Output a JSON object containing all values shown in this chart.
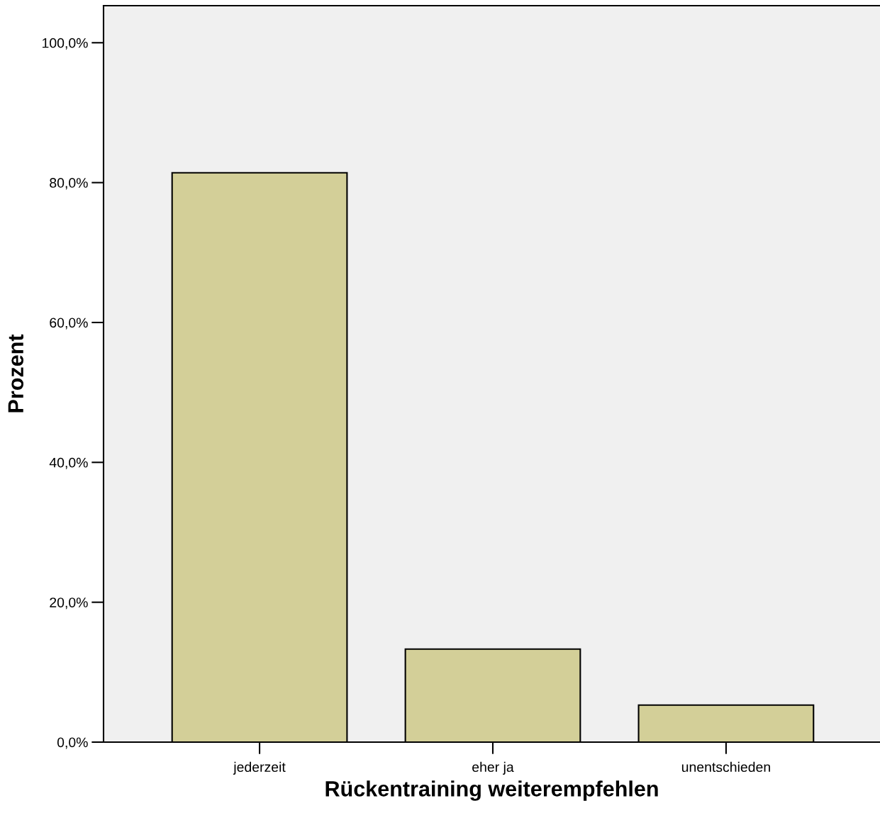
{
  "chart_data": {
    "type": "bar",
    "xlabel": "Rückentraining weiterempfehlen",
    "ylabel": "Prozent",
    "categories": [
      "jederzeit",
      "eher ja",
      "unentschieden"
    ],
    "values": [
      81.4,
      13.3,
      5.3
    ],
    "color": "#d3cf98",
    "ylim": [
      0,
      105.3
    ],
    "yticks": [
      {
        "value": 0,
        "label": "0,0%"
      },
      {
        "value": 20,
        "label": "20,0%"
      },
      {
        "value": 40,
        "label": "40,0%"
      },
      {
        "value": 60,
        "label": "60,0%"
      },
      {
        "value": 80,
        "label": "80,0%"
      },
      {
        "value": 100,
        "label": "100,0%"
      }
    ],
    "grid": false
  }
}
